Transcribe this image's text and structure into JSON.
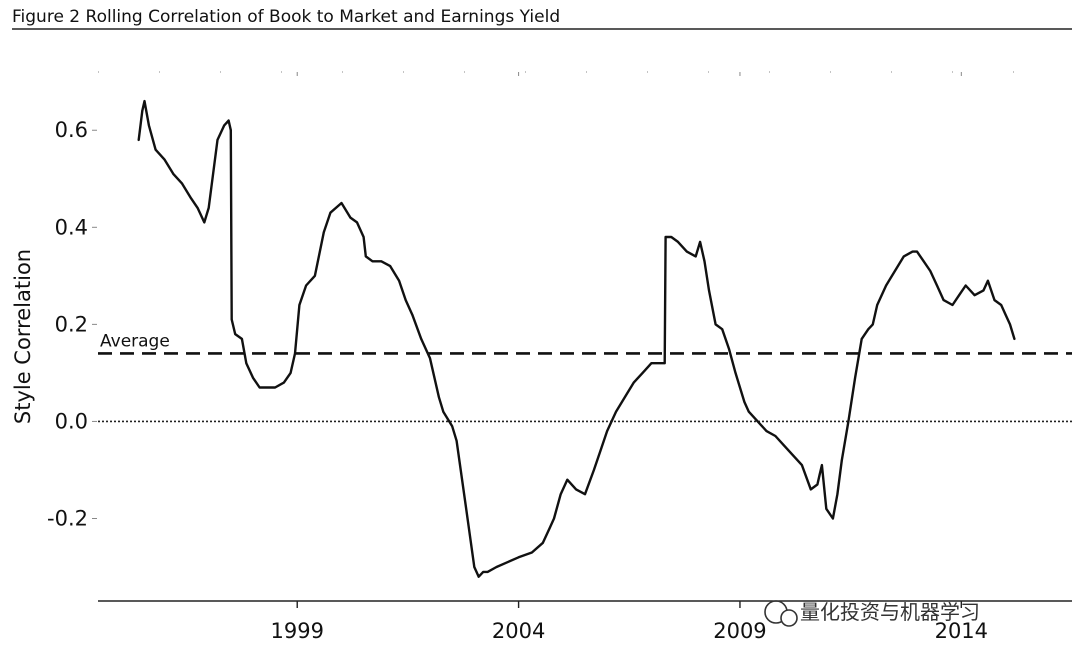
{
  "chart_data": {
    "type": "line",
    "title": "Figure 2  Rolling Correlation of Book to Market and Earnings Yield",
    "xlabel": "",
    "ylabel": "Style Correlation",
    "xlim": [
      1994.5,
      2016.5
    ],
    "ylim": [
      -0.37,
      0.72
    ],
    "x_ticks": [
      1999,
      2004,
      2009,
      2014
    ],
    "y_ticks": [
      -0.2,
      0.0,
      0.2,
      0.4,
      0.6
    ],
    "y_tick_labels": [
      "-0.2",
      "0.0",
      "0.2",
      "0.4",
      "0.6"
    ],
    "grid": false,
    "average": {
      "label": "Average",
      "value": 0.14
    },
    "zero_line": 0.0,
    "series": [
      {
        "color": "#111111",
        "x": [
          1995.42,
          1995.5,
          1995.55,
          1995.65,
          1995.8,
          1996.0,
          1996.2,
          1996.4,
          1996.6,
          1996.75,
          1996.9,
          1997.0,
          1997.2,
          1997.35,
          1997.45,
          1997.5,
          1997.52,
          1997.6,
          1997.75,
          1997.85,
          1998.0,
          1998.15,
          1998.3,
          1998.5,
          1998.7,
          1998.85,
          1998.95,
          1999.05,
          1999.2,
          1999.4,
          1999.6,
          1999.75,
          2000.0,
          2000.2,
          2000.35,
          2000.5,
          2000.55,
          2000.7,
          2000.9,
          2001.1,
          2001.3,
          2001.45,
          2001.6,
          2001.8,
          2002.0,
          2002.2,
          2002.3,
          2002.5,
          2002.6,
          2002.8,
          2003.0,
          2003.1,
          2003.2,
          2003.3,
          2003.5,
          2003.75,
          2004.0,
          2004.3,
          2004.55,
          2004.7,
          2004.8,
          2004.95,
          2005.1,
          2005.3,
          2005.5,
          2005.7,
          2005.85,
          2006.0,
          2006.2,
          2006.4,
          2006.6,
          2006.8,
          2007.0,
          2007.2,
          2007.3,
          2007.32,
          2007.45,
          2007.6,
          2007.8,
          2008.0,
          2008.1,
          2008.2,
          2008.3,
          2008.45,
          2008.6,
          2008.75,
          2008.9,
          2009.1,
          2009.2,
          2009.4,
          2009.6,
          2009.8,
          2010.0,
          2010.2,
          2010.4,
          2010.6,
          2010.75,
          2010.8,
          2010.85,
          2010.95,
          2011.1,
          2011.2,
          2011.3,
          2011.45,
          2011.6,
          2011.75,
          2011.9,
          2012.0,
          2012.1,
          2012.3,
          2012.5,
          2012.7,
          2012.9,
          2013.0,
          2013.15,
          2013.3,
          2013.45,
          2013.6,
          2013.8,
          2013.95,
          2014.1,
          2014.3,
          2014.5,
          2014.6,
          2014.75,
          2014.9,
          2015.0,
          2015.1,
          2015.2
        ],
        "y": [
          0.58,
          0.64,
          0.66,
          0.61,
          0.56,
          0.54,
          0.51,
          0.49,
          0.46,
          0.44,
          0.41,
          0.44,
          0.58,
          0.61,
          0.62,
          0.6,
          0.21,
          0.18,
          0.17,
          0.12,
          0.09,
          0.07,
          0.07,
          0.07,
          0.08,
          0.1,
          0.14,
          0.24,
          0.28,
          0.3,
          0.39,
          0.43,
          0.45,
          0.42,
          0.41,
          0.38,
          0.34,
          0.33,
          0.33,
          0.32,
          0.29,
          0.25,
          0.22,
          0.17,
          0.13,
          0.05,
          0.02,
          -0.01,
          -0.04,
          -0.17,
          -0.3,
          -0.32,
          -0.31,
          -0.31,
          -0.3,
          -0.29,
          -0.28,
          -0.27,
          -0.25,
          -0.22,
          -0.2,
          -0.15,
          -0.12,
          -0.14,
          -0.15,
          -0.1,
          -0.06,
          -0.02,
          0.02,
          0.05,
          0.08,
          0.1,
          0.12,
          0.12,
          0.12,
          0.38,
          0.38,
          0.37,
          0.35,
          0.34,
          0.37,
          0.33,
          0.27,
          0.2,
          0.19,
          0.15,
          0.1,
          0.04,
          0.02,
          0.0,
          -0.02,
          -0.03,
          -0.05,
          -0.07,
          -0.09,
          -0.14,
          -0.13,
          -0.11,
          -0.09,
          -0.18,
          -0.2,
          -0.15,
          -0.08,
          0.0,
          0.09,
          0.17,
          0.19,
          0.2,
          0.24,
          0.28,
          0.31,
          0.34,
          0.35,
          0.35,
          0.33,
          0.31,
          0.28,
          0.25,
          0.24,
          0.26,
          0.28,
          0.26,
          0.27,
          0.29,
          0.25,
          0.24,
          0.22,
          0.2,
          0.17
        ]
      }
    ]
  },
  "watermark": {
    "text": "量化投资与机器学习"
  }
}
